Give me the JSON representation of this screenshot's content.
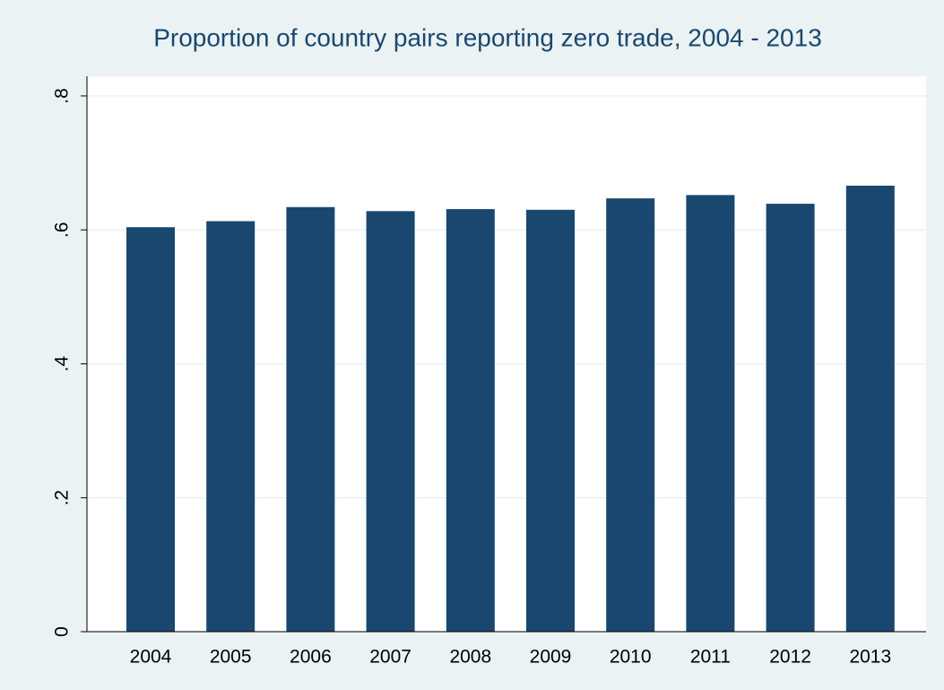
{
  "chart_data": {
    "type": "bar",
    "title": "Proportion of country pairs reporting zero trade, 2004 - 2013",
    "categories": [
      "2004",
      "2005",
      "2006",
      "2007",
      "2008",
      "2009",
      "2010",
      "2011",
      "2012",
      "2013"
    ],
    "values": [
      0.604,
      0.613,
      0.634,
      0.628,
      0.631,
      0.63,
      0.647,
      0.652,
      0.639,
      0.666
    ],
    "color": "#1a476f",
    "ylim": [
      0,
      0.82
    ],
    "yticks": [
      0,
      {
        "value": 0.2,
        "label": ".2"
      },
      {
        "value": 0.4,
        "label": ".4"
      },
      {
        "value": 0.6,
        "label": ".6"
      },
      {
        "value": 0.8,
        "label": ".8"
      }
    ],
    "grid": true
  }
}
